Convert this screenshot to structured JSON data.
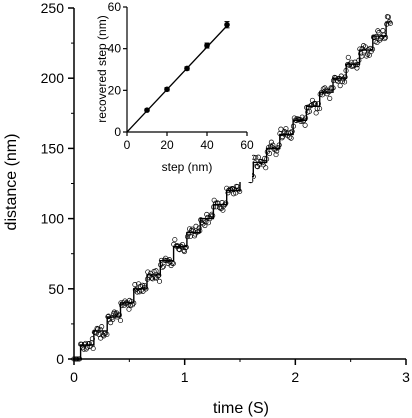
{
  "chart_data": [
    {
      "type": "scatter",
      "xlabel": "time (S)",
      "ylabel": "distance (nm)",
      "xlim": [
        0,
        3
      ],
      "ylim": [
        0,
        250
      ],
      "xticks": [
        "0",
        "1",
        "2",
        "3"
      ],
      "yticks": [
        "0",
        "50",
        "100",
        "150",
        "200",
        "250"
      ],
      "series": [
        {
          "style": "open circles with staircase fit line",
          "step_size_nm": 10,
          "dwell_time_s": 0.12,
          "x_range": [
            0,
            2.86
          ],
          "y_range": [
            0,
            240
          ]
        }
      ],
      "staircase_fit": {
        "x": [
          0.0,
          0.06,
          0.18,
          0.3,
          0.42,
          0.54,
          0.66,
          0.78,
          0.9,
          1.02,
          1.14,
          1.26,
          1.38,
          1.5,
          1.62,
          1.74,
          1.86,
          1.98,
          2.1,
          2.22,
          2.34,
          2.46,
          2.58,
          2.7,
          2.82,
          2.86
        ],
        "y": [
          0,
          10,
          20,
          30,
          40,
          50,
          60,
          70,
          80,
          90,
          100,
          110,
          120,
          130,
          140,
          150,
          160,
          170,
          180,
          190,
          200,
          210,
          220,
          230,
          240,
          240
        ]
      }
    },
    {
      "type": "line",
      "xlabel": "step (nm)",
      "ylabel": "recovered step (nm)",
      "xlim": [
        0,
        60
      ],
      "ylim": [
        0,
        60
      ],
      "xticks": [
        "0",
        "20",
        "40",
        "60"
      ],
      "yticks": [
        "0",
        "20",
        "40",
        "60"
      ],
      "x": [
        10,
        20,
        30,
        40,
        50
      ],
      "y": [
        10.5,
        20.5,
        30.5,
        41.5,
        51.5
      ],
      "error": [
        0.6,
        0.8,
        0.8,
        1.2,
        1.5
      ],
      "fit_line": {
        "x": [
          0,
          50
        ],
        "y": [
          0,
          51
        ]
      }
    }
  ]
}
